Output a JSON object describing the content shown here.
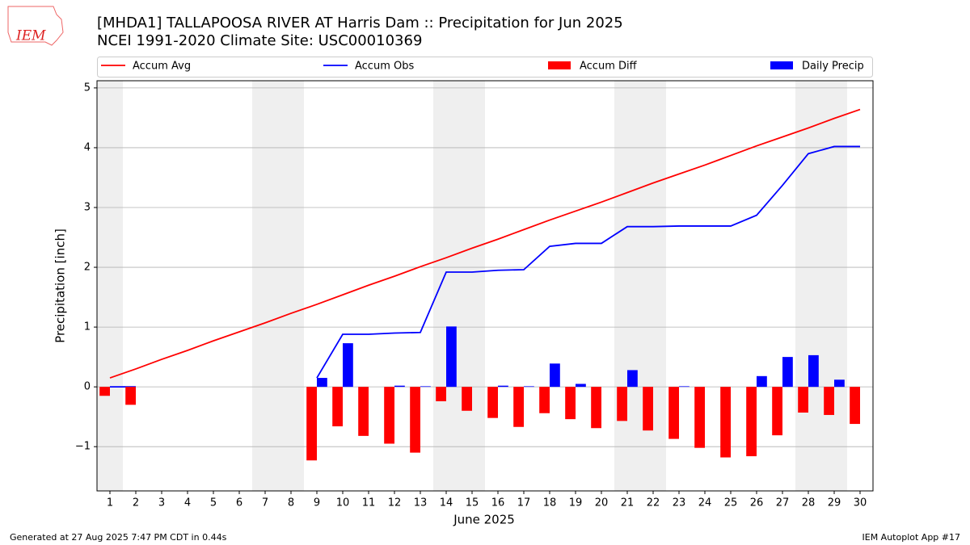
{
  "chart_data": {
    "type": "bar",
    "title": "[MHDA1] TALLAPOOSA RIVER  AT Harris Dam :: Precipitation for Jun 2025",
    "subtitle": "NCEI 1991-2020 Climate Site: USC00010369",
    "logo_text": "IEM",
    "xlabel": "June 2025",
    "ylabel": "Precipitation [inch]",
    "footer_left": "Generated at 27 Aug 2025 7:47 PM CDT in 0.44s",
    "footer_right": "IEM Autoplot App #17",
    "x": [
      1,
      2,
      3,
      4,
      5,
      6,
      7,
      8,
      9,
      10,
      11,
      12,
      13,
      14,
      15,
      16,
      17,
      18,
      19,
      20,
      21,
      22,
      23,
      24,
      25,
      26,
      27,
      28,
      29,
      30
    ],
    "xlim": [
      0.5,
      30.5
    ],
    "xticks": [
      1,
      2,
      3,
      4,
      5,
      6,
      7,
      8,
      9,
      10,
      11,
      12,
      13,
      14,
      15,
      16,
      17,
      18,
      19,
      20,
      21,
      22,
      23,
      24,
      25,
      26,
      27,
      28,
      29,
      30
    ],
    "ylim": [
      -1.74,
      5.12
    ],
    "yticks": [
      {
        "value": -1,
        "label": "−1"
      },
      0,
      1,
      2,
      3,
      4,
      5
    ],
    "grid": "y",
    "series": [
      {
        "name": "Accum Avg",
        "type": "line",
        "color": "#ff0000",
        "values": [
          0.15,
          0.3,
          0.46,
          0.61,
          0.77,
          0.92,
          1.07,
          1.23,
          1.38,
          1.54,
          1.7,
          1.85,
          2.01,
          2.16,
          2.32,
          2.47,
          2.63,
          2.79,
          2.94,
          3.09,
          3.25,
          3.41,
          3.56,
          3.71,
          3.87,
          4.03,
          4.18,
          4.33,
          4.49,
          4.64
        ]
      },
      {
        "name": "Accum Obs",
        "type": "line",
        "color": "#0000ff",
        "values": [
          0,
          0,
          null,
          null,
          null,
          null,
          null,
          null,
          0.15,
          0.88,
          0.88,
          0.9,
          0.91,
          1.92,
          1.92,
          1.95,
          1.96,
          2.35,
          2.4,
          2.4,
          2.68,
          2.68,
          2.69,
          2.69,
          2.69,
          2.87,
          3.37,
          3.9,
          4.02,
          4.02
        ]
      },
      {
        "name": "Accum Diff",
        "type": "bar",
        "color": "#ff0000",
        "values": [
          -0.15,
          -0.3,
          null,
          null,
          null,
          null,
          null,
          null,
          -1.23,
          -0.66,
          -0.82,
          -0.95,
          -1.1,
          -0.24,
          -0.4,
          -0.52,
          -0.67,
          -0.44,
          -0.54,
          -0.69,
          -0.57,
          -0.73,
          -0.87,
          -1.02,
          -1.18,
          -1.16,
          -0.81,
          -0.43,
          -0.47,
          -0.62
        ]
      },
      {
        "name": "Daily Precip",
        "type": "bar",
        "color": "#0000ff",
        "values": [
          0,
          0,
          null,
          null,
          null,
          null,
          null,
          null,
          0.15,
          0.73,
          0,
          0.02,
          0.01,
          1.01,
          0,
          0.02,
          0.01,
          0.39,
          0.05,
          0,
          0.28,
          0,
          0.01,
          0,
          0,
          0.18,
          0.5,
          0.53,
          0.12,
          0
        ]
      }
    ]
  }
}
